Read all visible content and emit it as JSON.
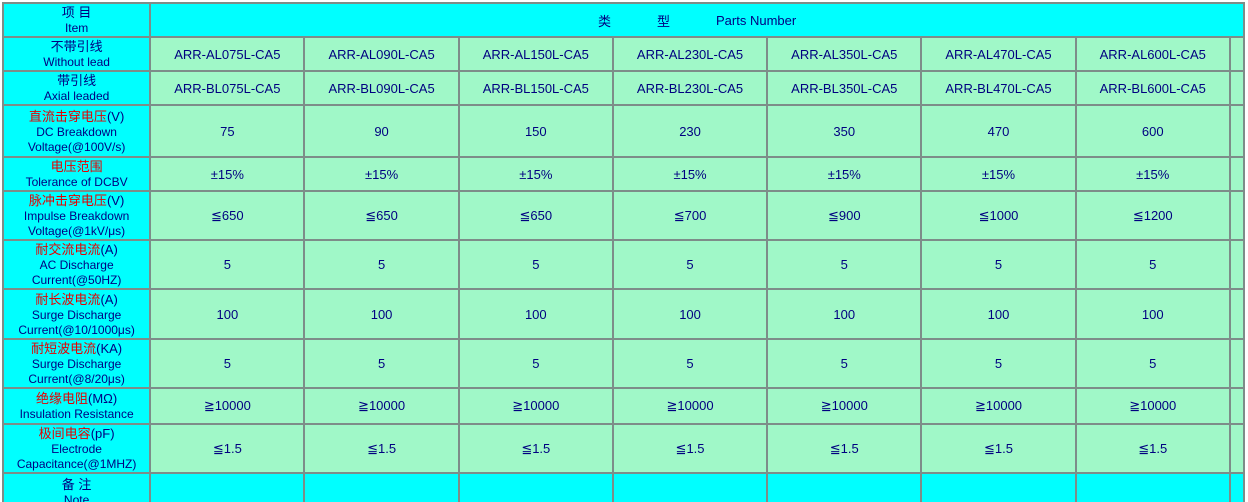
{
  "colors": {
    "header_bg": "#00ffff",
    "value_bg": "#a0f8c8",
    "label_red": "#e60000",
    "text_navy": "#000080",
    "grid_line": "#7d8d89"
  },
  "header_row": {
    "cn": "项 目",
    "en": "Item",
    "type_cn1": "类",
    "type_cn2": "型",
    "type_en": "Parts  Number"
  },
  "part_rows": [
    {
      "cn": "不带引线",
      "en": "Without lead",
      "cells": [
        "ARR-AL075L-CA5",
        "ARR-AL090L-CA5",
        "ARR-AL150L-CA5",
        "ARR-AL230L-CA5",
        "ARR-AL350L-CA5",
        "ARR-AL470L-CA5",
        "ARR-AL600L-CA5"
      ]
    },
    {
      "cn": "带引线",
      "en": "Axial leaded",
      "cells": [
        "ARR-BL075L-CA5",
        "ARR-BL090L-CA5",
        "ARR-BL150L-CA5",
        "ARR-BL230L-CA5",
        "ARR-BL350L-CA5",
        "ARR-BL470L-CA5",
        "ARR-BL600L-CA5"
      ]
    }
  ],
  "spec_rows": [
    {
      "cn": "直流击穿电压",
      "unit": "(V)",
      "en": "DC Breakdown Voltage(@100V/s)",
      "values": [
        "75",
        "90",
        "150",
        "230",
        "350",
        "470",
        "600"
      ]
    },
    {
      "cn": "电压范围",
      "unit": "",
      "en": "Tolerance of DCBV",
      "values": [
        "±15%",
        "±15%",
        "±15%",
        "±15%",
        "±15%",
        "±15%",
        "±15%"
      ]
    },
    {
      "cn": "脉冲击穿电压",
      "unit": "(V)",
      "en": "Impulse Breakdown Voltage(@1kV/μs)",
      "values": [
        "≦650",
        "≦650",
        "≦650",
        "≦700",
        "≦900",
        "≦1000",
        "≦1200"
      ]
    },
    {
      "cn": "耐交流电流",
      "unit": "(A)",
      "en": "AC Discharge Current(@50HZ)",
      "values": [
        "5",
        "5",
        "5",
        "5",
        "5",
        "5",
        "5"
      ]
    },
    {
      "cn": "耐长波电流",
      "unit": "(A)",
      "en": "Surge Discharge Current(@10/1000μs)",
      "values": [
        "100",
        "100",
        "100",
        "100",
        "100",
        "100",
        "100"
      ]
    },
    {
      "cn": "耐短波电流",
      "unit": "(KA)",
      "en": "Surge Discharge Current(@8/20μs)",
      "values": [
        "5",
        "5",
        "5",
        "5",
        "5",
        "5",
        "5"
      ]
    },
    {
      "cn": "绝缘电阻",
      "unit": "(MΩ)",
      "en": "Insulation Resistance",
      "values": [
        "≧10000",
        "≧10000",
        "≧10000",
        "≧10000",
        "≧10000",
        "≧10000",
        "≧10000"
      ]
    },
    {
      "cn": "极间电容",
      "unit": "(pF)",
      "en": "Electrode Capacitance(@1MHZ)",
      "values": [
        "≦1.5",
        "≦1.5",
        "≦1.5",
        "≦1.5",
        "≦1.5",
        "≦1.5",
        "≦1.5"
      ]
    }
  ],
  "note_row": {
    "cn": "备 注",
    "en": "Note"
  }
}
